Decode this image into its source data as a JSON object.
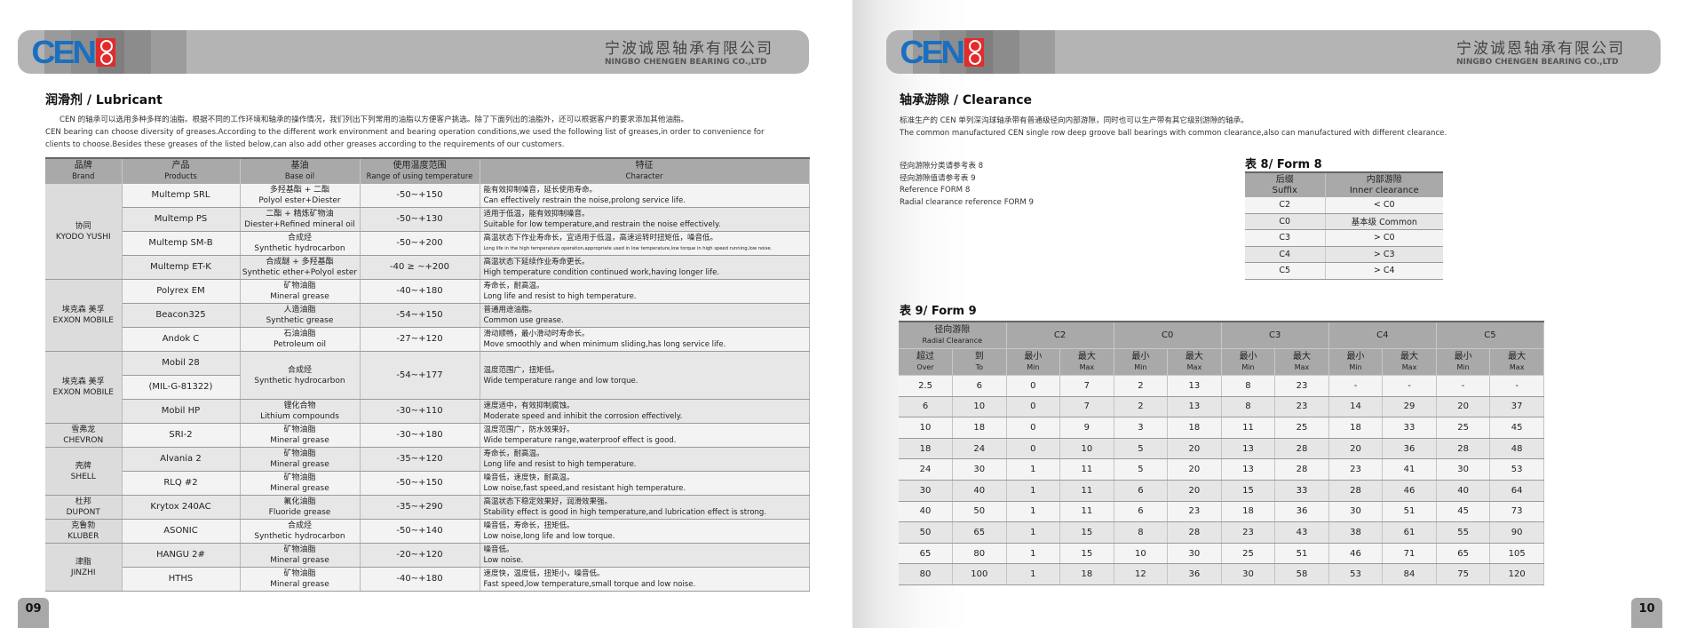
{
  "header": {
    "logo_text": "CEN",
    "company_cn": "宁波诚恩轴承有限公司",
    "company_en": "NINGBO CHENGEN BEARING CO.,LTD"
  },
  "left": {
    "title": "润滑剂 / Lubricant",
    "para_cn": "CEN 的轴承可以选用多种多样的油脂。根据不同的工作环境和轴承的操作情况，我们列出下列常用的油脂以方便客户挑选。除了下面列出的油脂外，还可以根据客户的要求添加其他油脂。",
    "para_en1": "CEN bearing can choose diversity of greases.According to the different work environment and bearing operation conditions,we used the following list of greases,in order to convenience for",
    "para_en2": "clients to choose.Besides these greases of the listed below,can also add other greases according to the requirements of our customers.",
    "columns": [
      {
        "cn": "品牌",
        "en": "Brand"
      },
      {
        "cn": "产品",
        "en": "Products"
      },
      {
        "cn": "基油",
        "en": "Base oil"
      },
      {
        "cn": "使用温度范围",
        "en": "Range of using temperature"
      },
      {
        "cn": "特征",
        "en": "Character"
      }
    ],
    "groups": [
      {
        "brand_cn": "协同",
        "brand_en": "KYODO YUSHI",
        "products": [
          {
            "names": [
              "Multemp SRL"
            ],
            "base_cn": "多羟基酯 + 二酯",
            "base_en": "Polyol ester+Diester",
            "temp": "-50~+150",
            "char_cn": "能有效抑制噪音，延长使用寿命。",
            "char_en": "Can effectively restrain the noise,prolong service life."
          },
          {
            "names": [
              "Multemp PS"
            ],
            "base_cn": "二酯 + 精炼矿物油",
            "base_en": "Diester+Refined mineral oil",
            "temp": "-50~+130",
            "char_cn": "适用于低温，能有效抑制噪音。",
            "char_en": "Suitable for low temperature,and restrain the noise effectively."
          },
          {
            "names": [
              "Multemp SM-B"
            ],
            "base_cn": "合成烃",
            "base_en": "Synthetic hydrocarbon",
            "temp": "-50~+200",
            "char_cn": "高温状态下作业寿命长，宜适用于低温，高速运转时扭矩低，噪音低。",
            "char_en": "Long life in the high temperature operation,appropriate used in low temperature,low torque in high speed running,low noise.",
            "small": true
          },
          {
            "names": [
              "Multemp ET-K"
            ],
            "base_cn": "合成醚 + 多羟基酯",
            "base_en": "Synthetic ether+Polyol ester",
            "temp": "-40 ≥ ~+200",
            "char_cn": "高温状态下延续作业寿命更长。",
            "char_en": "High temperature condition continued work,having longer life."
          }
        ]
      },
      {
        "brand_cn": "埃克森 美孚",
        "brand_en": "EXXON MOBILE",
        "products": [
          {
            "names": [
              "Polyrex EM"
            ],
            "base_cn": "矿物油脂",
            "base_en": "Mineral grease",
            "temp": "-40~+180",
            "char_cn": "寿命长，耐高温。",
            "char_en": "Long life and resist to high temperature."
          },
          {
            "names": [
              "Beacon325"
            ],
            "base_cn": "人造油脂",
            "base_en": "Synthetic grease",
            "temp": "-54~+150",
            "char_cn": "普通用途油脂。",
            "char_en": "Common use grease."
          },
          {
            "names": [
              "Andok C"
            ],
            "base_cn": "石油油脂",
            "base_en": "Petroleum oil",
            "temp": "-27~+120",
            "char_cn": "滑动顺畅，最小滑动时寿命长。",
            "char_en": "Move smoothly and when minimum sliding,has long service life."
          }
        ]
      },
      {
        "brand_cn": "埃克森 美孚",
        "brand_en": "EXXON MOBILE",
        "products": [
          {
            "names": [
              "Mobil 28",
              "(MIL-G-81322)"
            ],
            "base_cn": "合成烃",
            "base_en": "Synthetic hydrocarbon",
            "temp": "-54~+177",
            "char_cn": "温度范围广，扭矩低。",
            "char_en": "Wide temperature range and low torque."
          },
          {
            "names": [
              "Mobil HP"
            ],
            "base_cn": "锂化合物",
            "base_en": "Lithium compounds",
            "temp": "-30~+110",
            "char_cn": "速度适中，有效抑制腐蚀。",
            "char_en": "Moderate speed and inhibit the corrosion effectively."
          }
        ]
      },
      {
        "brand_cn": "雪弗龙",
        "brand_en": "CHEVRON",
        "products": [
          {
            "names": [
              "SRI-2"
            ],
            "base_cn": "矿物油脂",
            "base_en": "Mineral grease",
            "temp": "-30~+180",
            "char_cn": "温度范围广，防水效果好。",
            "char_en": "Wide temperature range,waterproof effect is good."
          }
        ]
      },
      {
        "brand_cn": "壳牌",
        "brand_en": "SHELL",
        "products": [
          {
            "names": [
              "Alvania 2"
            ],
            "base_cn": "矿物油脂",
            "base_en": "Mineral grease",
            "temp": "-35~+120",
            "char_cn": "寿命长，耐高温。",
            "char_en": "Long life and resist to high temperature."
          },
          {
            "names": [
              "RLQ #2"
            ],
            "base_cn": "矿物油脂",
            "base_en": "Mineral grease",
            "temp": "-50~+150",
            "char_cn": "噪音低，速度快，耐高温。",
            "char_en": "Low noise,fast speed,and resistant high temperature."
          }
        ]
      },
      {
        "brand_cn": "杜邦",
        "brand_en": "DUPONT",
        "products": [
          {
            "names": [
              "Krytox 240AC"
            ],
            "base_cn": "氟化油脂",
            "base_en": "Fluoride grease",
            "temp": "-35~+290",
            "char_cn": "高温状态下稳定效果好，润滑效果强。",
            "char_en": "Stability effect is good in high temperature,and lubrication effect is strong."
          }
        ]
      },
      {
        "brand_cn": "克鲁勃",
        "brand_en": "KLUBER",
        "products": [
          {
            "names": [
              "ASONIC"
            ],
            "base_cn": "合成烃",
            "base_en": "Synthetic hydrocarbon",
            "temp": "-50~+140",
            "char_cn": "噪音低，寿命长，扭矩低。",
            "char_en": "Low noise,long life and low torque."
          }
        ]
      },
      {
        "brand_cn": "津脂",
        "brand_en": "JINZHI",
        "products": [
          {
            "names": [
              "HANGU 2#"
            ],
            "base_cn": "矿物油脂",
            "base_en": "Mineral grease",
            "temp": "-20~+120",
            "char_cn": "噪音低。",
            "char_en": "Low noise."
          },
          {
            "names": [
              "HTHS"
            ],
            "base_cn": "矿物油脂",
            "base_en": "Mineral grease",
            "temp": "-40~+180",
            "char_cn": "速度快，温度低，扭矩小，噪音低。",
            "char_en": "Fast speed,low temperature,small torque and low noise."
          }
        ]
      }
    ],
    "page_number": "09"
  },
  "right": {
    "title": "轴承游隙 / Clearance",
    "para_cn": "标准生产的 CEN 单列深沟球轴承带有普通级径向内部游隙，同时也可以生产带有其它级别游隙的轴承。",
    "para_en": "The common manufactured CEN single row deep groove ball bearings with common clearance,also can manufactured with different clearance.",
    "refs": [
      "径向游隙分类请参考表 8",
      "径向游隙值请参考表 9",
      "Reference FORM 8",
      "Radial clearance reference FORM 9"
    ],
    "form8": {
      "title": "表 8/ Form 8",
      "headers": [
        {
          "cn": "后缀",
          "en": "Suffix"
        },
        {
          "cn": "内部游隙",
          "en": "Inner clearance"
        }
      ],
      "rows": [
        [
          "C2",
          "< C0"
        ],
        [
          "C0",
          "基本级 Common"
        ],
        [
          "C3",
          "> C0"
        ],
        [
          "C4",
          "> C3"
        ],
        [
          "C5",
          "> C4"
        ]
      ]
    },
    "form9": {
      "title": "表 9/ Form 9",
      "corner": {
        "cn": "径向游隙",
        "en": "Radial Clearance"
      },
      "groups": [
        "C2",
        "C0",
        "C3",
        "C4",
        "C5"
      ],
      "sub_over": {
        "cn": "超过",
        "en": "Over"
      },
      "sub_to": {
        "cn": "到",
        "en": "To"
      },
      "sub_min": {
        "cn": "最小",
        "en": "Min"
      },
      "sub_max": {
        "cn": "最大",
        "en": "Max"
      },
      "rows": [
        [
          "2.5",
          "6",
          "0",
          "7",
          "2",
          "13",
          "8",
          "23",
          "-",
          "-",
          "-",
          "-"
        ],
        [
          "6",
          "10",
          "0",
          "7",
          "2",
          "13",
          "8",
          "23",
          "14",
          "29",
          "20",
          "37"
        ],
        [
          "10",
          "18",
          "0",
          "9",
          "3",
          "18",
          "11",
          "25",
          "18",
          "33",
          "25",
          "45"
        ],
        [
          "18",
          "24",
          "0",
          "10",
          "5",
          "20",
          "13",
          "28",
          "20",
          "36",
          "28",
          "48"
        ],
        [
          "24",
          "30",
          "1",
          "11",
          "5",
          "20",
          "13",
          "28",
          "23",
          "41",
          "30",
          "53"
        ],
        [
          "30",
          "40",
          "1",
          "11",
          "6",
          "20",
          "15",
          "33",
          "28",
          "46",
          "40",
          "64"
        ],
        [
          "40",
          "50",
          "1",
          "11",
          "6",
          "23",
          "18",
          "36",
          "30",
          "51",
          "45",
          "73"
        ],
        [
          "50",
          "65",
          "1",
          "15",
          "8",
          "28",
          "23",
          "43",
          "38",
          "61",
          "55",
          "90"
        ],
        [
          "65",
          "80",
          "1",
          "15",
          "10",
          "30",
          "25",
          "51",
          "46",
          "71",
          "65",
          "105"
        ],
        [
          "80",
          "100",
          "1",
          "18",
          "12",
          "36",
          "30",
          "58",
          "53",
          "84",
          "75",
          "120"
        ]
      ]
    },
    "page_number": "10"
  },
  "colors": {
    "logo_blue": "#1a6fc0",
    "logo_red": "#e32b2b",
    "header_gray": "#b4b4b4",
    "table_header": "#a9a9a9"
  }
}
